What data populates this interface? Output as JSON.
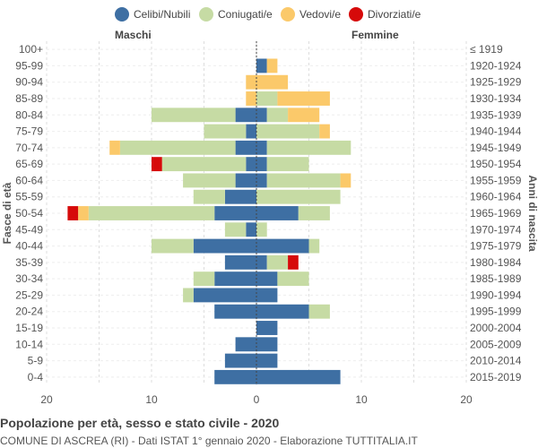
{
  "legend": [
    {
      "label": "Celibi/Nubili",
      "color": "#3e6fa3"
    },
    {
      "label": "Coniugati/e",
      "color": "#c6dba4"
    },
    {
      "label": "Vedovi/e",
      "color": "#fbc96a"
    },
    {
      "label": "Divorziati/e",
      "color": "#d60a0a"
    }
  ],
  "header": {
    "left": "Maschi",
    "right": "Femmine"
  },
  "footer": {
    "title": "Popolazione per età, sesso e stato civile - 2020",
    "subtitle": "COMUNE DI ASCREA (RI) - Dati ISTAT 1° gennaio 2020 - Elaborazione TUTTITALIA.IT"
  },
  "chart_data": {
    "type": "bar",
    "orientation": "horizontal-pyramid",
    "ylabel_left": "Fasce di età",
    "ylabel_right": "Anni di nascita",
    "xlim": [
      -20,
      20
    ],
    "xticks": [
      -20,
      -10,
      0,
      10,
      20
    ],
    "xtick_labels": [
      "20",
      "10",
      "0",
      "10",
      "20"
    ],
    "grid": true,
    "legend_position": "top",
    "series_order": [
      "celibi",
      "coniugati",
      "vedovi",
      "divorziati"
    ],
    "series_colors": {
      "celibi": "#3e6fa3",
      "coniugati": "#c6dba4",
      "vedovi": "#fbc96a",
      "divorziati": "#d60a0a"
    },
    "age_groups": [
      "100+",
      "95-99",
      "90-94",
      "85-89",
      "80-84",
      "75-79",
      "70-74",
      "65-69",
      "60-64",
      "55-59",
      "50-54",
      "45-49",
      "40-44",
      "35-39",
      "30-34",
      "25-29",
      "20-24",
      "15-19",
      "10-14",
      "5-9",
      "0-4"
    ],
    "birth_years": [
      "≤ 1919",
      "1920-1924",
      "1925-1929",
      "1930-1934",
      "1935-1939",
      "1940-1944",
      "1945-1949",
      "1950-1954",
      "1955-1959",
      "1960-1964",
      "1965-1969",
      "1970-1974",
      "1975-1979",
      "1980-1984",
      "1985-1989",
      "1990-1994",
      "1995-1999",
      "2000-2004",
      "2005-2009",
      "2010-2014",
      "2015-2019"
    ],
    "males": {
      "celibi": [
        0,
        0,
        0,
        0,
        2,
        1,
        2,
        1,
        2,
        3,
        4,
        1,
        6,
        3,
        4,
        6,
        4,
        0,
        2,
        3,
        4
      ],
      "coniugati": [
        0,
        0,
        0,
        0,
        8,
        4,
        11,
        8,
        5,
        3,
        12,
        2,
        4,
        0,
        2,
        1,
        0,
        0,
        0,
        0,
        0
      ],
      "vedovi": [
        0,
        0,
        1,
        1,
        0,
        0,
        1,
        0,
        0,
        0,
        1,
        0,
        0,
        0,
        0,
        0,
        0,
        0,
        0,
        0,
        0
      ],
      "divorziati": [
        0,
        0,
        0,
        0,
        0,
        0,
        0,
        1,
        0,
        0,
        1,
        0,
        0,
        0,
        0,
        0,
        0,
        0,
        0,
        0,
        0
      ]
    },
    "females": {
      "celibi": [
        0,
        1,
        0,
        0,
        1,
        0,
        1,
        1,
        1,
        0,
        4,
        0,
        5,
        1,
        2,
        2,
        5,
        2,
        2,
        2,
        8
      ],
      "coniugati": [
        0,
        0,
        0,
        2,
        2,
        6,
        8,
        4,
        7,
        8,
        3,
        1,
        1,
        2,
        3,
        0,
        2,
        0,
        0,
        0,
        0
      ],
      "vedovi": [
        0,
        1,
        3,
        5,
        3,
        1,
        0,
        0,
        1,
        0,
        0,
        0,
        0,
        0,
        0,
        0,
        0,
        0,
        0,
        0,
        0
      ],
      "divorziati": [
        0,
        0,
        0,
        0,
        0,
        0,
        0,
        0,
        0,
        0,
        0,
        0,
        0,
        1,
        0,
        0,
        0,
        0,
        0,
        0,
        0
      ]
    }
  }
}
